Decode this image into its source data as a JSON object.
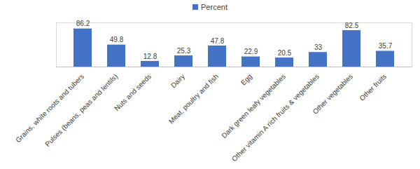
{
  "chart_data": {
    "type": "bar",
    "categories": [
      "Grains, white roots and tubers",
      "Pulses (beans, peas and lentils)",
      "Nuts and seeds",
      "Dairy",
      "Meat, poultry and fish",
      "Egg",
      "Dark green leafy vegetables",
      "Other vitamin A rich fruits & vegetables",
      "Other vegetables",
      "Other fruits"
    ],
    "series": [
      {
        "name": "Percent",
        "color": "#4472c4",
        "values": [
          86.2,
          49.8,
          12.8,
          25.3,
          47.8,
          22.9,
          20.5,
          33,
          82.5,
          35.7
        ]
      }
    ],
    "ylim": [
      0,
      100
    ],
    "legend": "top",
    "data_labels": true,
    "tick_labels": "x"
  }
}
